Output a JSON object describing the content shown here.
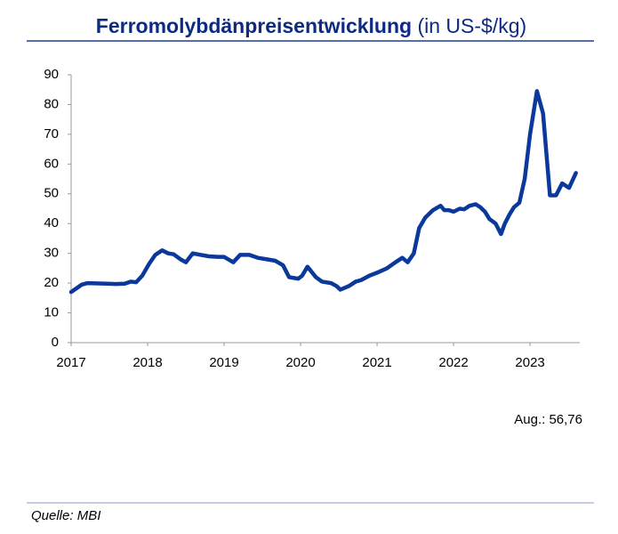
{
  "chart_data": {
    "type": "line",
    "title": "Ferromolybdänpreisentwicklung",
    "subtitle": "(in US-$/kg)",
    "annotation": "Aug.: 56,76",
    "source": "Quelle: MBI",
    "xlim": [
      2017,
      2023.65
    ],
    "xticks": [
      2017,
      2018,
      2019,
      2020,
      2021,
      2022,
      2023
    ],
    "ylim": [
      0,
      90
    ],
    "yticks": [
      0,
      10,
      20,
      30,
      40,
      50,
      60,
      70,
      80,
      90
    ],
    "grid": false,
    "x": [
      2017.0,
      2017.14,
      2017.21,
      2017.47,
      2017.58,
      2017.7,
      2017.78,
      2017.85,
      2017.93,
      2018.02,
      2018.1,
      2018.19,
      2018.27,
      2018.34,
      2018.43,
      2018.5,
      2018.59,
      2018.69,
      2018.8,
      2018.92,
      2019.0,
      2019.12,
      2019.21,
      2019.33,
      2019.44,
      2019.56,
      2019.67,
      2019.77,
      2019.85,
      2019.97,
      2020.02,
      2020.09,
      2020.2,
      2020.28,
      2020.4,
      2020.47,
      2020.52,
      2020.63,
      2020.72,
      2020.79,
      2020.9,
      2021.0,
      2021.13,
      2021.24,
      2021.33,
      2021.4,
      2021.48,
      2021.55,
      2021.63,
      2021.73,
      2021.83,
      2021.88,
      2021.94,
      2022.0,
      2022.08,
      2022.14,
      2022.21,
      2022.29,
      2022.35,
      2022.41,
      2022.47,
      2022.55,
      2022.62,
      2022.67,
      2022.73,
      2022.79,
      2022.86,
      2022.93,
      2023.0,
      2023.09,
      2023.17,
      2023.26,
      2023.34,
      2023.42,
      2023.51,
      2023.6
    ],
    "series": [
      {
        "name": "Ferromolybdän",
        "color": "#0a389b",
        "values": [
          17,
          19.5,
          20,
          19.8,
          19.7,
          19.8,
          20.5,
          20.3,
          22.5,
          26.5,
          29.5,
          31,
          30,
          29.7,
          28,
          27,
          30,
          29.5,
          29,
          28.8,
          28.8,
          27,
          29.5,
          29.5,
          28.5,
          28,
          27.5,
          26,
          22,
          21.5,
          22.5,
          25.5,
          22,
          20.5,
          20,
          19,
          17.8,
          19,
          20.5,
          21,
          22.5,
          23.5,
          25,
          27,
          28.5,
          27,
          30,
          38.5,
          42,
          44.5,
          46,
          44.5,
          44.5,
          44,
          45,
          44.8,
          46,
          46.5,
          45.5,
          44,
          41.5,
          40,
          36.5,
          40,
          43,
          45.5,
          47,
          55,
          70,
          84.5,
          77,
          49.5,
          49.5,
          53.5,
          52,
          57
        ]
      }
    ]
  }
}
